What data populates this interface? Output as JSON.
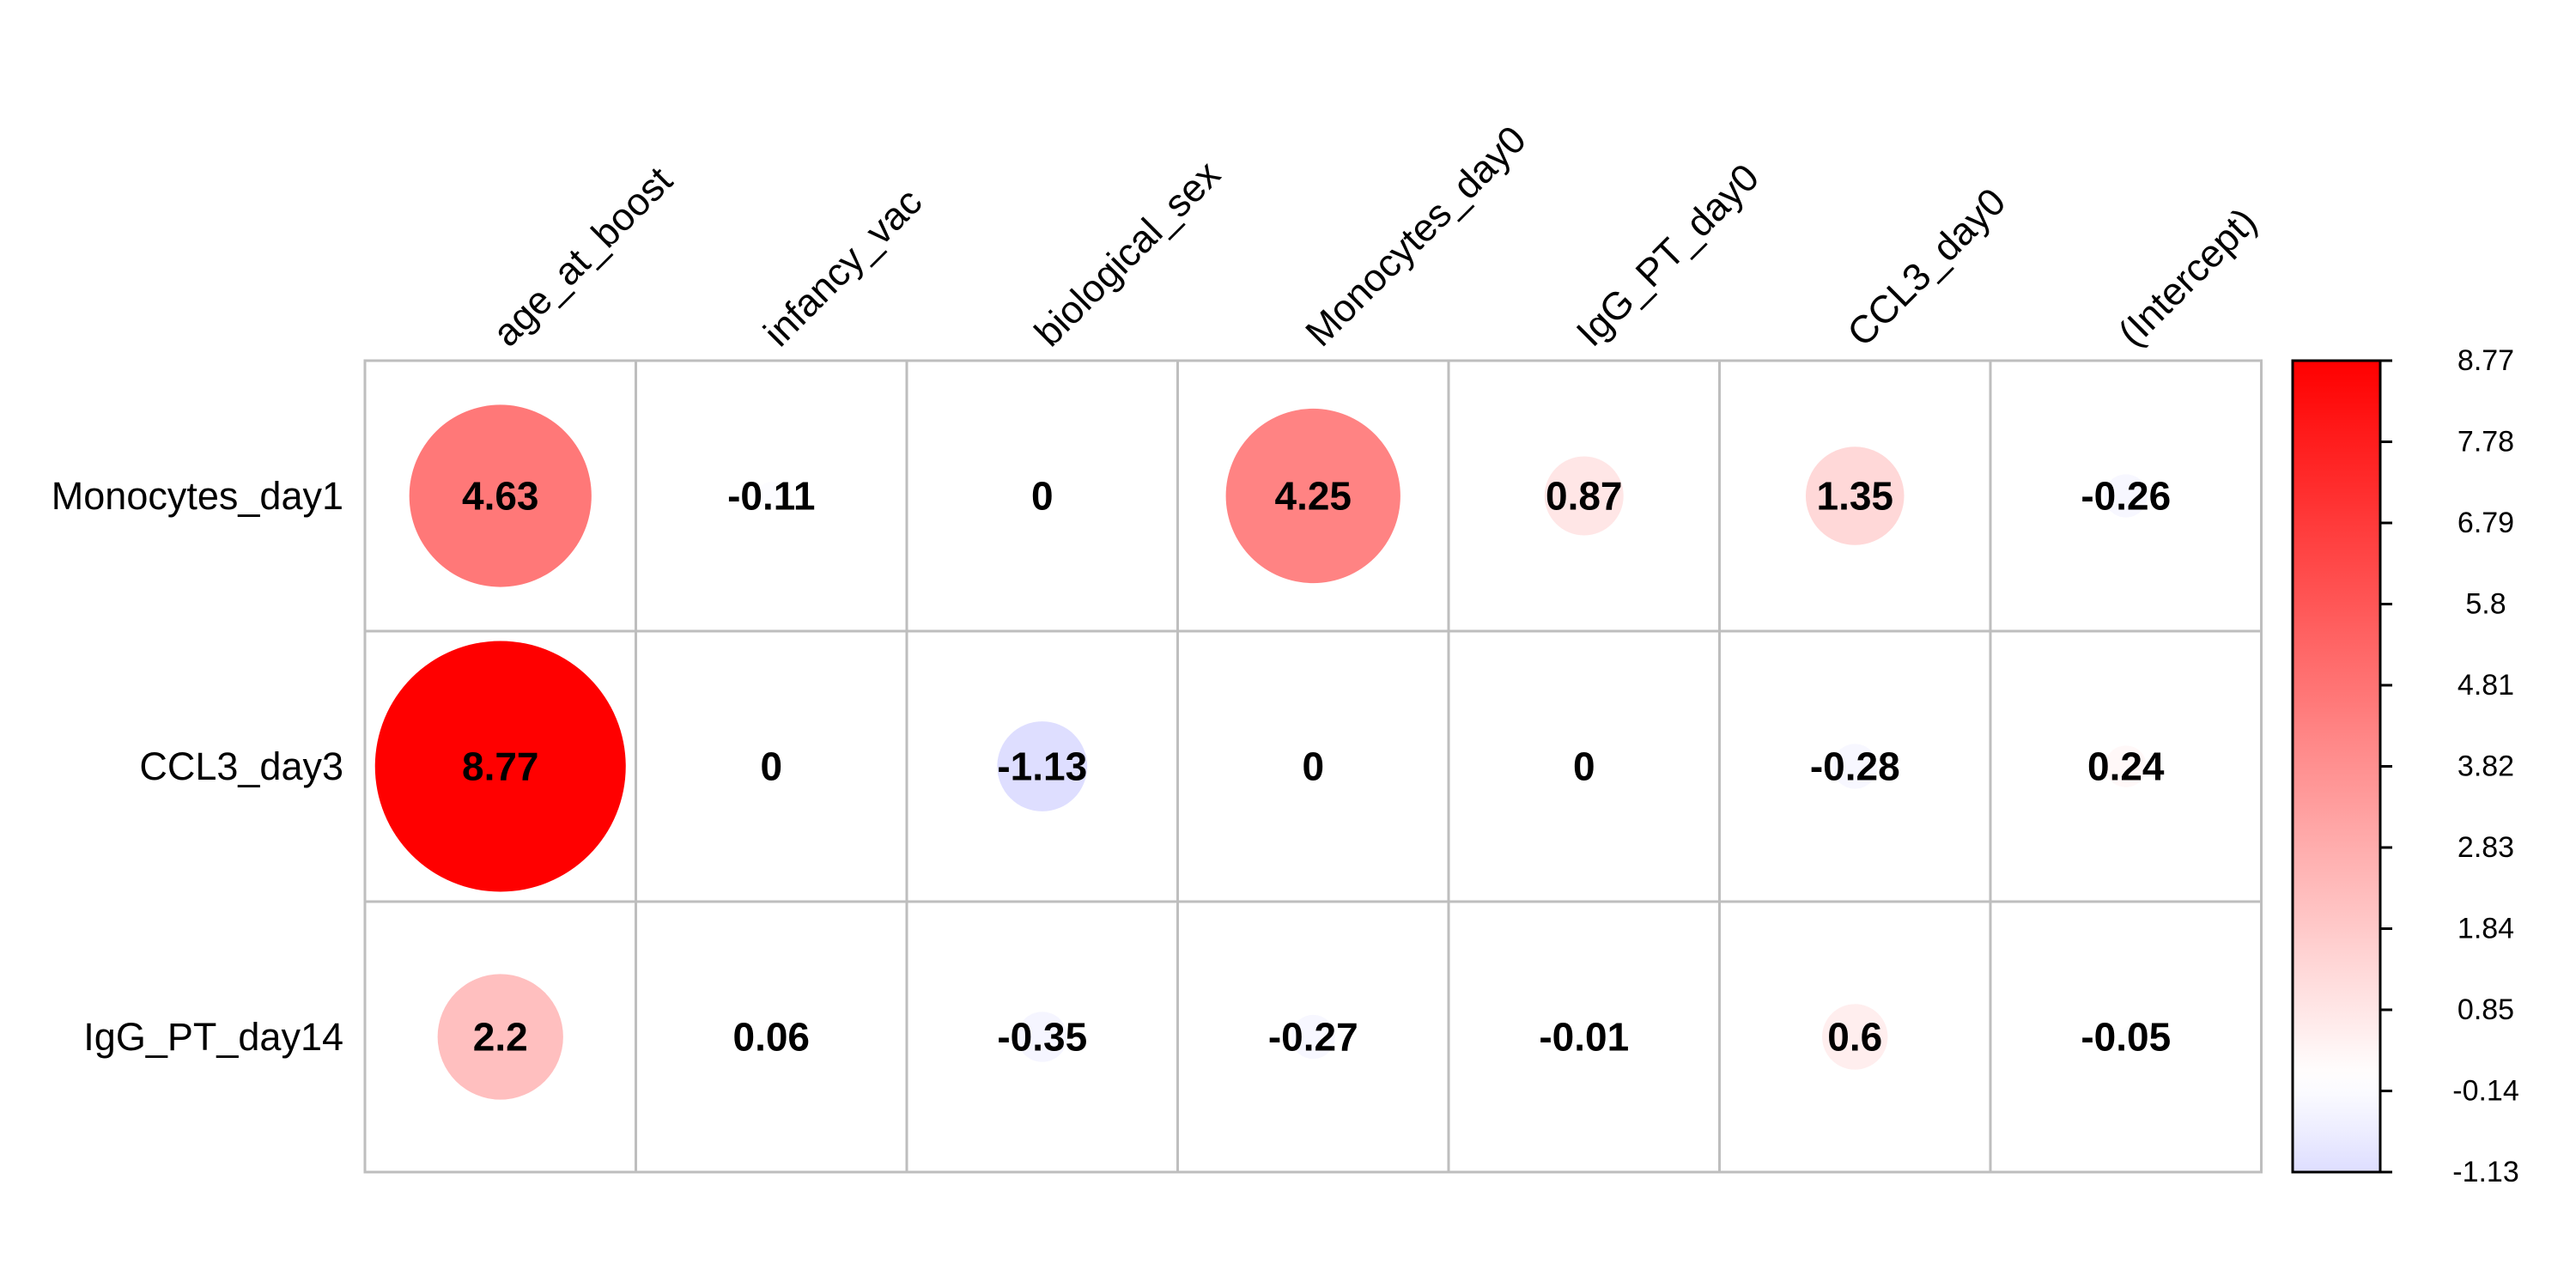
{
  "chart_data": {
    "type": "heatmap",
    "subtype": "circle-matrix",
    "title": "",
    "rows": [
      "Monocytes_day1",
      "CCL3_day3",
      "IgG_PT_day14"
    ],
    "columns": [
      "age_at_boost",
      "infancy_vac",
      "biological_sex",
      "Monocytes_day0",
      "IgG_PT_day0",
      "CCL3_day0",
      "(Intercept)"
    ],
    "values": [
      [
        4.63,
        -0.11,
        0,
        4.25,
        0.87,
        1.35,
        -0.26
      ],
      [
        8.77,
        0,
        -1.13,
        0,
        0,
        -0.28,
        0.24
      ],
      [
        2.2,
        0.06,
        -0.35,
        -0.27,
        -0.01,
        0.6,
        -0.05
      ]
    ],
    "cell_labels": [
      [
        "4.63",
        "-0.11",
        "0",
        "4.25",
        "0.87",
        "1.35",
        "-0.26"
      ],
      [
        "8.77",
        "0",
        "-1.13",
        "0",
        "0",
        "-0.28",
        "0.24"
      ],
      [
        "2.2",
        "0.06",
        "-0.35",
        "-0.27",
        "-0.01",
        "0.6",
        "-0.05"
      ]
    ],
    "color_range": [
      -1.13,
      8.77
    ],
    "colorbar": {
      "position": "right",
      "ticks": [
        "8.77",
        "7.78",
        "6.79",
        "5.8",
        "4.81",
        "3.82",
        "2.83",
        "1.84",
        "0.85",
        "-0.14",
        "-1.13"
      ]
    },
    "colors": {
      "negative": "#0000ff",
      "neutral": "#ffffff",
      "positive": "#ff0000",
      "grid": "#bebebe"
    },
    "grid": true
  }
}
